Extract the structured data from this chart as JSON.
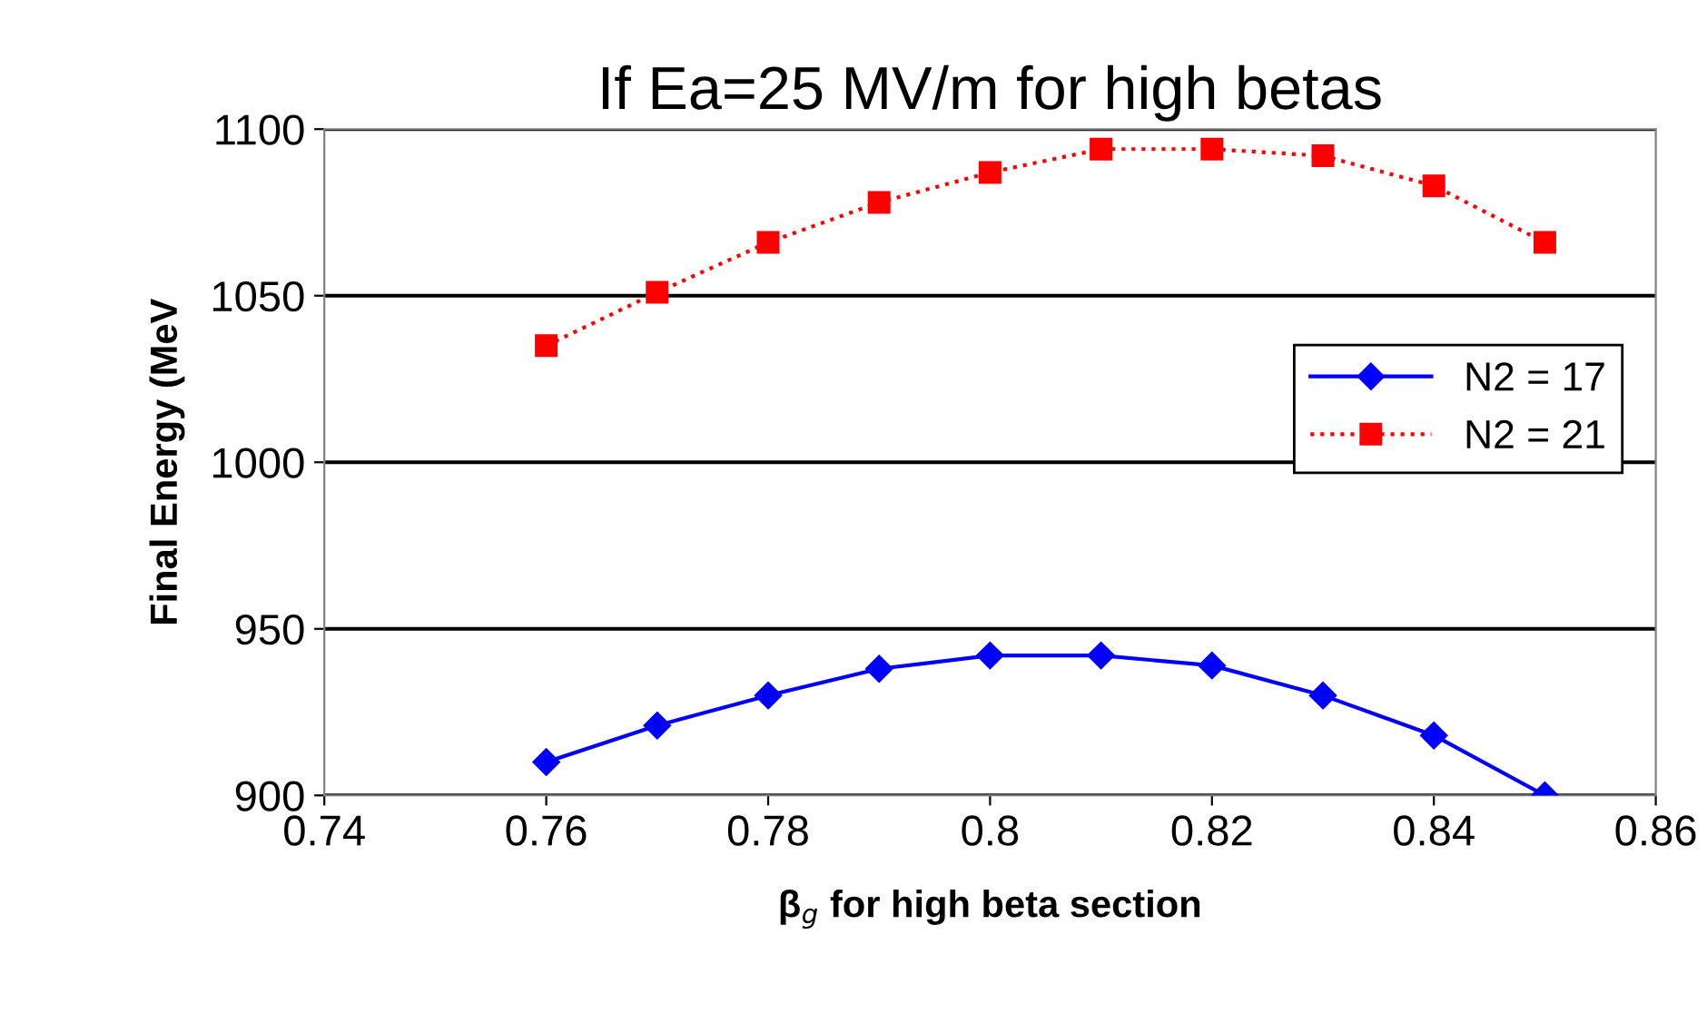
{
  "chart_data": {
    "type": "line",
    "title": "If Ea=25 MV/m for high betas",
    "xlabel": "β$_{g}$ for high beta section",
    "ylabel": "Final Energy (MeV",
    "x": [
      0.76,
      0.77,
      0.78,
      0.79,
      0.8,
      0.81,
      0.82,
      0.83,
      0.84,
      0.85
    ],
    "series": [
      {
        "name": "N2 = 17",
        "color": "#0000ff",
        "marker": "diamond",
        "line_style": "solid",
        "values": [
          910,
          921,
          930,
          938,
          942,
          942,
          939,
          930,
          918,
          900
        ]
      },
      {
        "name": "N2 = 21",
        "color": "#ff0000",
        "marker": "square",
        "line_style": "dotted",
        "values": [
          1035,
          1051,
          1066,
          1078,
          1087,
          1094,
          1094,
          1092,
          1083,
          1066
        ]
      }
    ],
    "xlim": [
      0.74,
      0.86
    ],
    "xticks": [
      0.74,
      0.76,
      0.78,
      0.8,
      0.82,
      0.84,
      0.86
    ],
    "ylim": [
      900,
      1100
    ],
    "yticks": [
      900,
      950,
      1000,
      1050,
      1100
    ],
    "grid": "y",
    "legend": "right"
  }
}
